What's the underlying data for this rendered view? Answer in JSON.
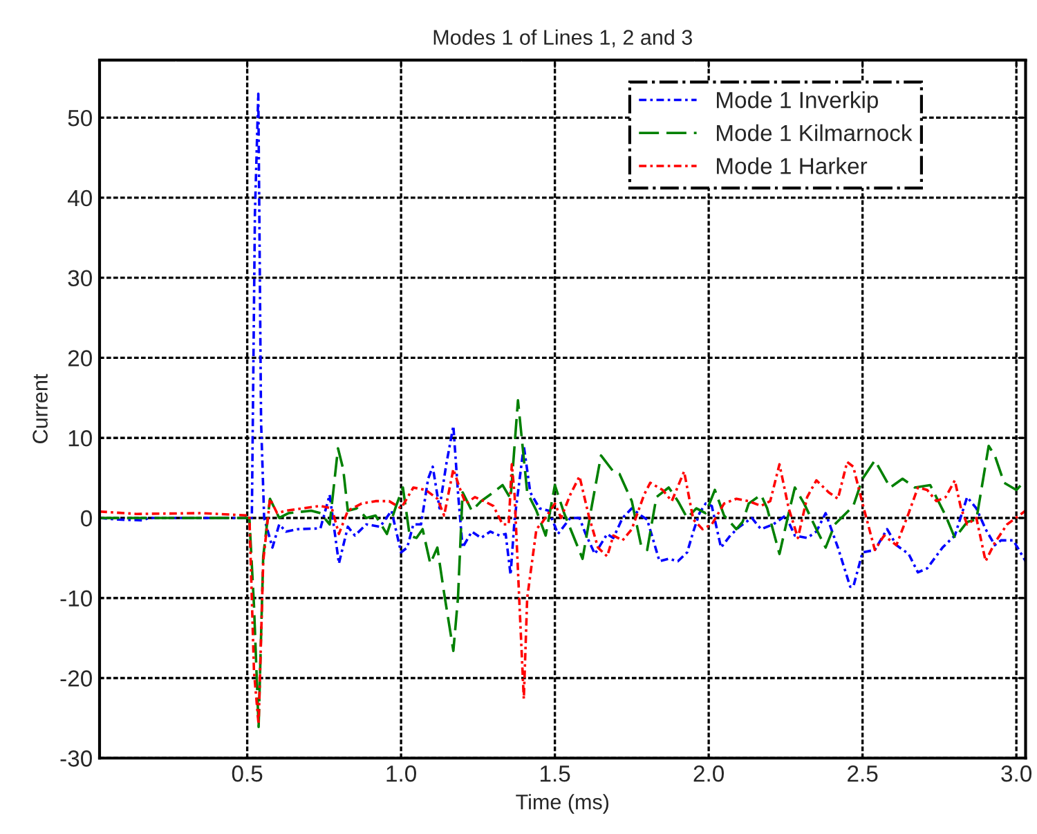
{
  "chart_data": {
    "type": "line",
    "title": "Modes 1 of Lines 1, 2 and 3",
    "xlabel": "Time (ms)",
    "ylabel": "Current",
    "xlim": [
      0.02,
      3.03
    ],
    "xticks": [
      0.5,
      {
        "value": 1,
        "label": "1.0"
      },
      1.5,
      {
        "value": 2,
        "label": "2.0"
      },
      2.5,
      {
        "value": 3,
        "label": "3.0"
      }
    ],
    "ylim": [
      -30,
      57.2
    ],
    "yticks": [
      -30,
      -20,
      -10,
      0,
      10,
      20,
      30,
      40,
      50
    ],
    "grid": true,
    "legend": "top right",
    "series": [
      {
        "name": "Mode 1 Inverkip",
        "color": "#0000ff",
        "line_style": "dotted",
        "x": [
          0.02,
          0.08,
          0.16,
          0.18,
          0.507,
          0.515,
          0.525,
          0.536,
          0.545,
          0.555,
          0.582,
          0.604,
          0.626,
          0.664,
          0.738,
          0.768,
          0.798,
          0.827,
          0.85,
          0.887,
          0.932,
          0.969,
          1.0,
          1.02,
          1.04,
          1.065,
          1.088,
          1.103,
          1.125,
          1.147,
          1.17,
          1.185,
          1.2,
          1.23,
          1.26,
          1.29,
          1.32,
          1.34,
          1.356,
          1.369,
          1.399,
          1.42,
          1.45,
          1.48,
          1.51,
          1.55,
          1.58,
          1.6,
          1.63,
          1.67,
          1.69,
          1.72,
          1.75,
          1.78,
          1.8,
          1.84,
          1.87,
          1.9,
          1.93,
          1.95,
          1.97,
          1.99,
          2.01,
          2.04,
          2.07,
          2.1,
          2.14,
          2.17,
          2.21,
          2.25,
          2.28,
          2.32,
          2.35,
          2.38,
          2.42,
          2.46,
          2.47,
          2.5,
          2.54,
          2.58,
          2.61,
          2.65,
          2.68,
          2.71,
          2.76,
          2.8,
          2.84,
          2.87,
          2.9,
          2.93,
          2.95,
          2.99,
          3.03
        ],
        "values": [
          0,
          -0.2,
          -0.3,
          0,
          0,
          0,
          38,
          53,
          12,
          0,
          -3.7,
          -0.8,
          -1.7,
          -1.4,
          -1.3,
          2.9,
          -5.7,
          -1.1,
          -2.2,
          -0.8,
          -1.1,
          0.9,
          -4.3,
          -3.7,
          -0.8,
          -0.8,
          4.9,
          6.4,
          1.2,
          6.7,
          11.5,
          3.2,
          -3.7,
          -1.7,
          -2.5,
          -1.7,
          -2.2,
          -2.0,
          -7.1,
          -0.2,
          9.0,
          3.2,
          1.2,
          0.9,
          -2.0,
          0,
          0,
          -2.0,
          -4.5,
          -2.0,
          -2.5,
          0,
          1.2,
          0.3,
          -0.2,
          -5.4,
          -5.1,
          -5.4,
          -4.3,
          -1.7,
          0.6,
          1.8,
          1.5,
          -3.7,
          -2.2,
          -1.1,
          0,
          -1.4,
          -0.8,
          0.3,
          -2.2,
          -2.5,
          -1.7,
          0.6,
          -3.7,
          -8.6,
          -8.6,
          -4.3,
          -4.0,
          -1.4,
          -3.4,
          -4.5,
          -6.8,
          -6.3,
          -3.7,
          -2.2,
          2.6,
          1.2,
          -1.4,
          -3.4,
          -2.8,
          -2.8,
          -5.4
        ]
      },
      {
        "name": "Mode 1 Kilmarnock",
        "color": "#008000",
        "line_style": "dashed",
        "x": [
          0.02,
          0.507,
          0.522,
          0.537,
          0.552,
          0.574,
          0.604,
          0.634,
          0.708,
          0.738,
          0.768,
          0.795,
          0.812,
          0.827,
          0.857,
          0.887,
          0.917,
          0.954,
          0.984,
          1.006,
          1.028,
          1.05,
          1.07,
          1.095,
          1.118,
          1.14,
          1.17,
          1.185,
          1.2,
          1.23,
          1.26,
          1.3,
          1.33,
          1.356,
          1.38,
          1.41,
          1.44,
          1.47,
          1.5,
          1.53,
          1.59,
          1.62,
          1.65,
          1.69,
          1.71,
          1.75,
          1.78,
          1.8,
          1.83,
          1.87,
          1.9,
          1.93,
          1.96,
          1.99,
          2.02,
          2.05,
          2.09,
          2.11,
          2.13,
          2.17,
          2.19,
          2.23,
          2.26,
          2.28,
          2.31,
          2.35,
          2.38,
          2.41,
          2.47,
          2.5,
          2.54,
          2.59,
          2.63,
          2.67,
          2.72,
          2.77,
          2.8,
          2.84,
          2.87,
          2.91,
          2.93,
          2.96,
          3.0,
          3.03
        ],
        "values": [
          0,
          0,
          -11,
          -26.1,
          -4.8,
          2.4,
          0,
          0.6,
          0.9,
          0.6,
          -0.8,
          8.7,
          6.1,
          0.9,
          1.2,
          0,
          0.3,
          -2.0,
          1.5,
          3.8,
          -2.2,
          -2.5,
          -1.4,
          -5.7,
          -3.7,
          -9.4,
          -16.6,
          -10,
          3.2,
          0.9,
          2.1,
          3.2,
          4.1,
          2.4,
          14.7,
          3.2,
          0.9,
          -2.2,
          4.1,
          0.6,
          -5.1,
          1.5,
          7.8,
          5.8,
          5.5,
          2.1,
          -3.4,
          -4.0,
          2.6,
          3.8,
          2.1,
          0,
          1.2,
          0.6,
          3.5,
          0.3,
          -1.4,
          -0.5,
          1.8,
          2.9,
          1.2,
          -4.5,
          0.6,
          3.8,
          1.8,
          -1.4,
          -3.7,
          -0.8,
          1.5,
          4.9,
          7.2,
          3.8,
          4.9,
          3.8,
          4.1,
          0.3,
          -2.5,
          -0.5,
          -0.2,
          9.0,
          7.8,
          4.4,
          3.5,
          4.7
        ]
      },
      {
        "name": "Mode 1 Harker",
        "color": "#ff0000",
        "line_style": "dotted",
        "x": [
          0.02,
          0.14,
          0.35,
          0.507,
          0.522,
          0.537,
          0.552,
          0.574,
          0.597,
          0.626,
          0.679,
          0.738,
          0.775,
          0.798,
          0.827,
          0.872,
          0.917,
          0.961,
          1.0,
          1.04,
          1.08,
          1.118,
          1.14,
          1.17,
          1.19,
          1.21,
          1.24,
          1.27,
          1.3,
          1.33,
          1.35,
          1.36,
          1.369,
          1.384,
          1.399,
          1.41,
          1.44,
          1.46,
          1.5,
          1.52,
          1.55,
          1.58,
          1.61,
          1.64,
          1.67,
          1.69,
          1.72,
          1.75,
          1.79,
          1.81,
          1.85,
          1.88,
          1.92,
          1.95,
          1.98,
          2.01,
          2.05,
          2.09,
          2.13,
          2.17,
          2.2,
          2.23,
          2.26,
          2.29,
          2.32,
          2.35,
          2.39,
          2.42,
          2.45,
          2.47,
          2.5,
          2.54,
          2.57,
          2.61,
          2.65,
          2.68,
          2.71,
          2.74,
          2.77,
          2.8,
          2.82,
          2.84,
          2.87,
          2.9,
          2.93,
          2.97,
          3.03
        ],
        "values": [
          0.8,
          0.5,
          0.6,
          0.3,
          -19.2,
          -25.8,
          -5.4,
          2.4,
          0.6,
          0.9,
          1.2,
          1.5,
          1.2,
          -2.0,
          0.9,
          1.8,
          2.1,
          2.1,
          1.2,
          3.8,
          3.5,
          2.4,
          0.3,
          6.1,
          3.8,
          1.8,
          2.6,
          2.1,
          1.5,
          -0.8,
          -0.8,
          6.7,
          2.9,
          -10,
          -22.6,
          -10,
          -1.4,
          -0.5,
          1.8,
          0,
          2.9,
          5.2,
          0.3,
          -3.7,
          -4.8,
          -2.2,
          -2.8,
          -1.4,
          2.9,
          4.4,
          3.5,
          2.1,
          5.8,
          -0.2,
          -1.4,
          -0.8,
          1.8,
          2.4,
          2.1,
          1.5,
          2.1,
          6.7,
          1.2,
          -2.5,
          2.6,
          4.7,
          3.2,
          2.4,
          7.0,
          6.4,
          1.8,
          -4.0,
          -2.2,
          -3.4,
          0.6,
          3.8,
          3.5,
          2.1,
          2.6,
          4.7,
          1.2,
          -0.8,
          0,
          -5.4,
          -3.1,
          -0.8,
          0.9
        ]
      }
    ]
  }
}
